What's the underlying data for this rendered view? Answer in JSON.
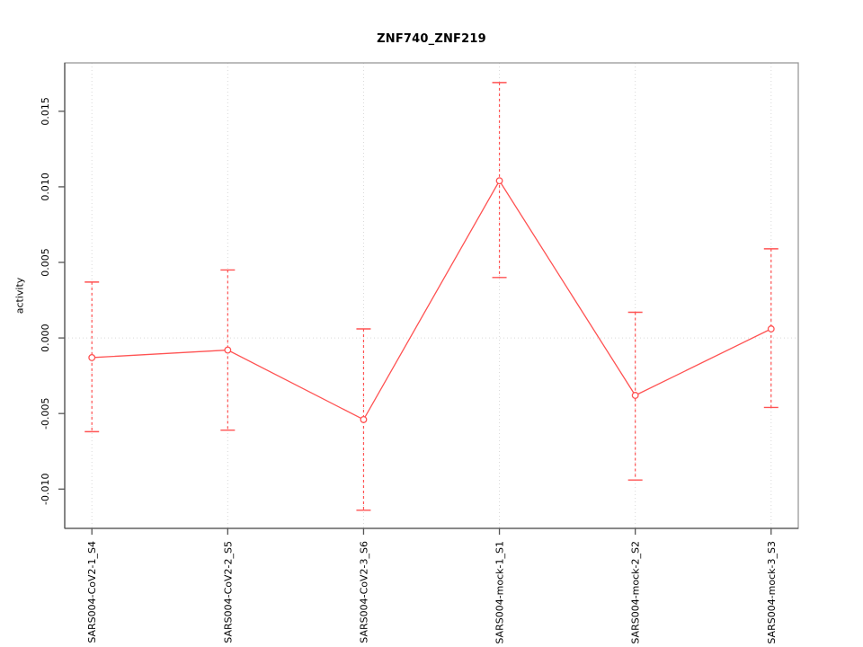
{
  "figure": {
    "title": "ZNF740_ZNF219",
    "ylabel": "activity"
  },
  "chart_data": {
    "type": "line",
    "title": "ZNF740_ZNF219",
    "xlabel": "",
    "ylabel": "activity",
    "categories": [
      "SARS004-CoV2-1_S4",
      "SARS004-CoV2-2_S5",
      "SARS004-CoV2-3_S6",
      "SARS004-mock-1_S1",
      "SARS004-mock-2_S2",
      "SARS004-mock-3_S3"
    ],
    "series": [
      {
        "name": "activity",
        "values": [
          -0.0013,
          -0.0008,
          -0.0054,
          0.0104,
          -0.0038,
          0.0006
        ],
        "error_upper": [
          0.0037,
          0.0045,
          0.0006,
          0.0169,
          0.0017,
          0.0059
        ],
        "error_lower": [
          -0.0062,
          -0.0061,
          -0.0114,
          0.004,
          -0.0094,
          -0.0046
        ]
      }
    ],
    "yticks": [
      -0.01,
      -0.005,
      0.0,
      0.005,
      0.01,
      0.015
    ],
    "ytick_labels": [
      "-0.010",
      "-0.005",
      "0.000",
      "0.005",
      "0.010",
      "0.015"
    ],
    "ylim": [
      -0.0126,
      0.0182
    ],
    "xlim": [
      0.8,
      6.2
    ],
    "legend": "none",
    "marker": "open-circle",
    "grid": {
      "vertical_at_categories": true,
      "horizontal_at_zero": true,
      "style": "dotted"
    },
    "colors": {
      "series": "#ff5252",
      "grid": "#d9d9d9",
      "box": "#999999",
      "axis": "#555555",
      "text": "#000000",
      "background": "#ffffff"
    }
  }
}
